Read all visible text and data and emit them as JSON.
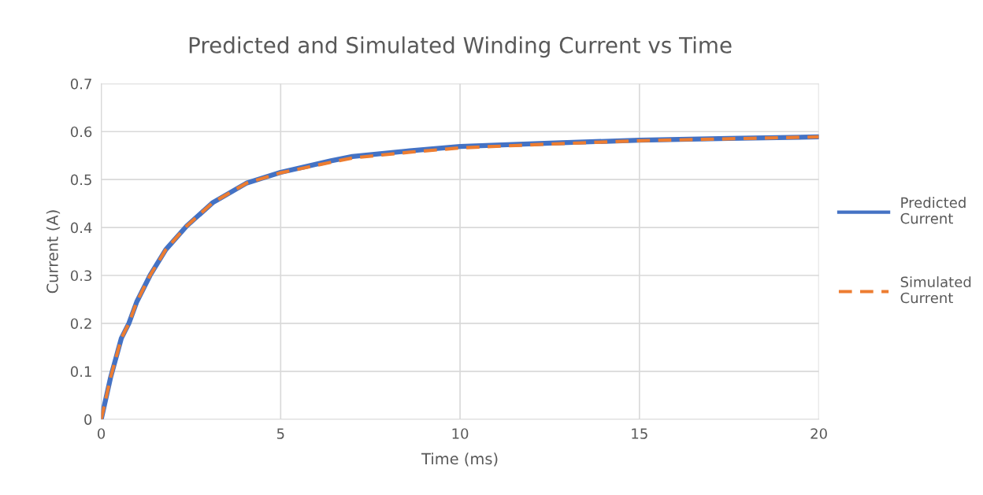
{
  "chart_data": {
    "type": "line",
    "title": "Predicted and Simulated Winding Current vs Time",
    "xlabel": "Time (ms)",
    "ylabel": "Current (A)",
    "xlim": [
      0,
      20
    ],
    "xticks": [
      0,
      5,
      10,
      15,
      20
    ],
    "ylim": [
      0,
      0.7
    ],
    "yticks": [
      0,
      0.1,
      0.2,
      0.3,
      0.4,
      0.5,
      0.6,
      0.7
    ],
    "grid": true,
    "legend": "right",
    "marker": "none",
    "series": [
      {
        "name": "Predicted Current",
        "color": "#4472c4",
        "line_style": "solid",
        "x": [
          0,
          0.26,
          0.56,
          0.77,
          0.99,
          1.36,
          1.8,
          2.38,
          3.11,
          4.06,
          5,
          6.4,
          7,
          8.6,
          10,
          12.5,
          15,
          17.5,
          20
        ],
        "values": [
          0,
          0.087,
          0.169,
          0.2,
          0.245,
          0.3,
          0.354,
          0.403,
          0.452,
          0.493,
          0.515,
          0.539,
          0.548,
          0.56,
          0.569,
          0.576,
          0.582,
          0.586,
          0.589
        ]
      },
      {
        "name": "Simulated Current",
        "color": "#ed7d31",
        "line_style": "dashed",
        "x": [
          0,
          0.26,
          0.56,
          0.77,
          0.99,
          1.36,
          1.8,
          2.38,
          3.11,
          4.06,
          5,
          6.4,
          7,
          8.6,
          10,
          12.5,
          15,
          17.5,
          20
        ],
        "values": [
          0,
          0.087,
          0.169,
          0.2,
          0.245,
          0.3,
          0.354,
          0.403,
          0.452,
          0.493,
          0.514,
          0.536,
          0.545,
          0.557,
          0.566,
          0.574,
          0.581,
          0.585,
          0.589
        ]
      }
    ]
  }
}
